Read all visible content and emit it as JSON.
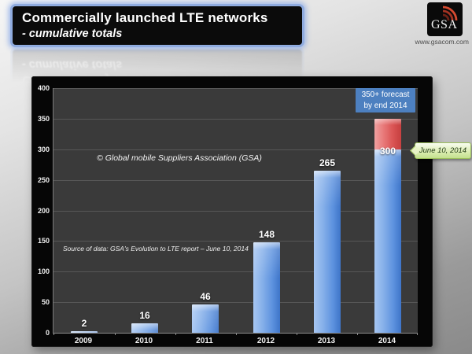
{
  "header": {
    "title": "Commercially launched LTE networks",
    "subtitle": "- cumulative totals",
    "logo": {
      "text": "GSA",
      "url": "www.gsacom.com"
    }
  },
  "chart_data": {
    "type": "bar",
    "title": "Commercially launched LTE networks - cumulative totals",
    "categories": [
      "2009",
      "2010",
      "2011",
      "2012",
      "2013",
      "2014"
    ],
    "values": [
      2,
      16,
      46,
      148,
      265,
      300
    ],
    "forecast": {
      "category": "2014",
      "from": 300,
      "to": 350,
      "note_line1": "350+ forecast",
      "note_line2": "by end 2014"
    },
    "xlabel": "",
    "ylabel": "",
    "ylim": [
      0,
      400
    ],
    "ytick_step": 50,
    "grid": true,
    "legend": false,
    "annotations": {
      "copyright": "© Global mobile Suppliers Association (GSA)",
      "source": "Source of data: GSA's Evolution to LTE report – June 10, 2014",
      "callout": "June 10, 2014"
    },
    "colors": {
      "bar_blue": "#5e93df",
      "forecast_red": "#d95353",
      "note_box_blue": "#4d80c0",
      "callout_green": "#dceeb4",
      "plot_bg": "#3a3a3a",
      "gridline": "#575757"
    }
  }
}
